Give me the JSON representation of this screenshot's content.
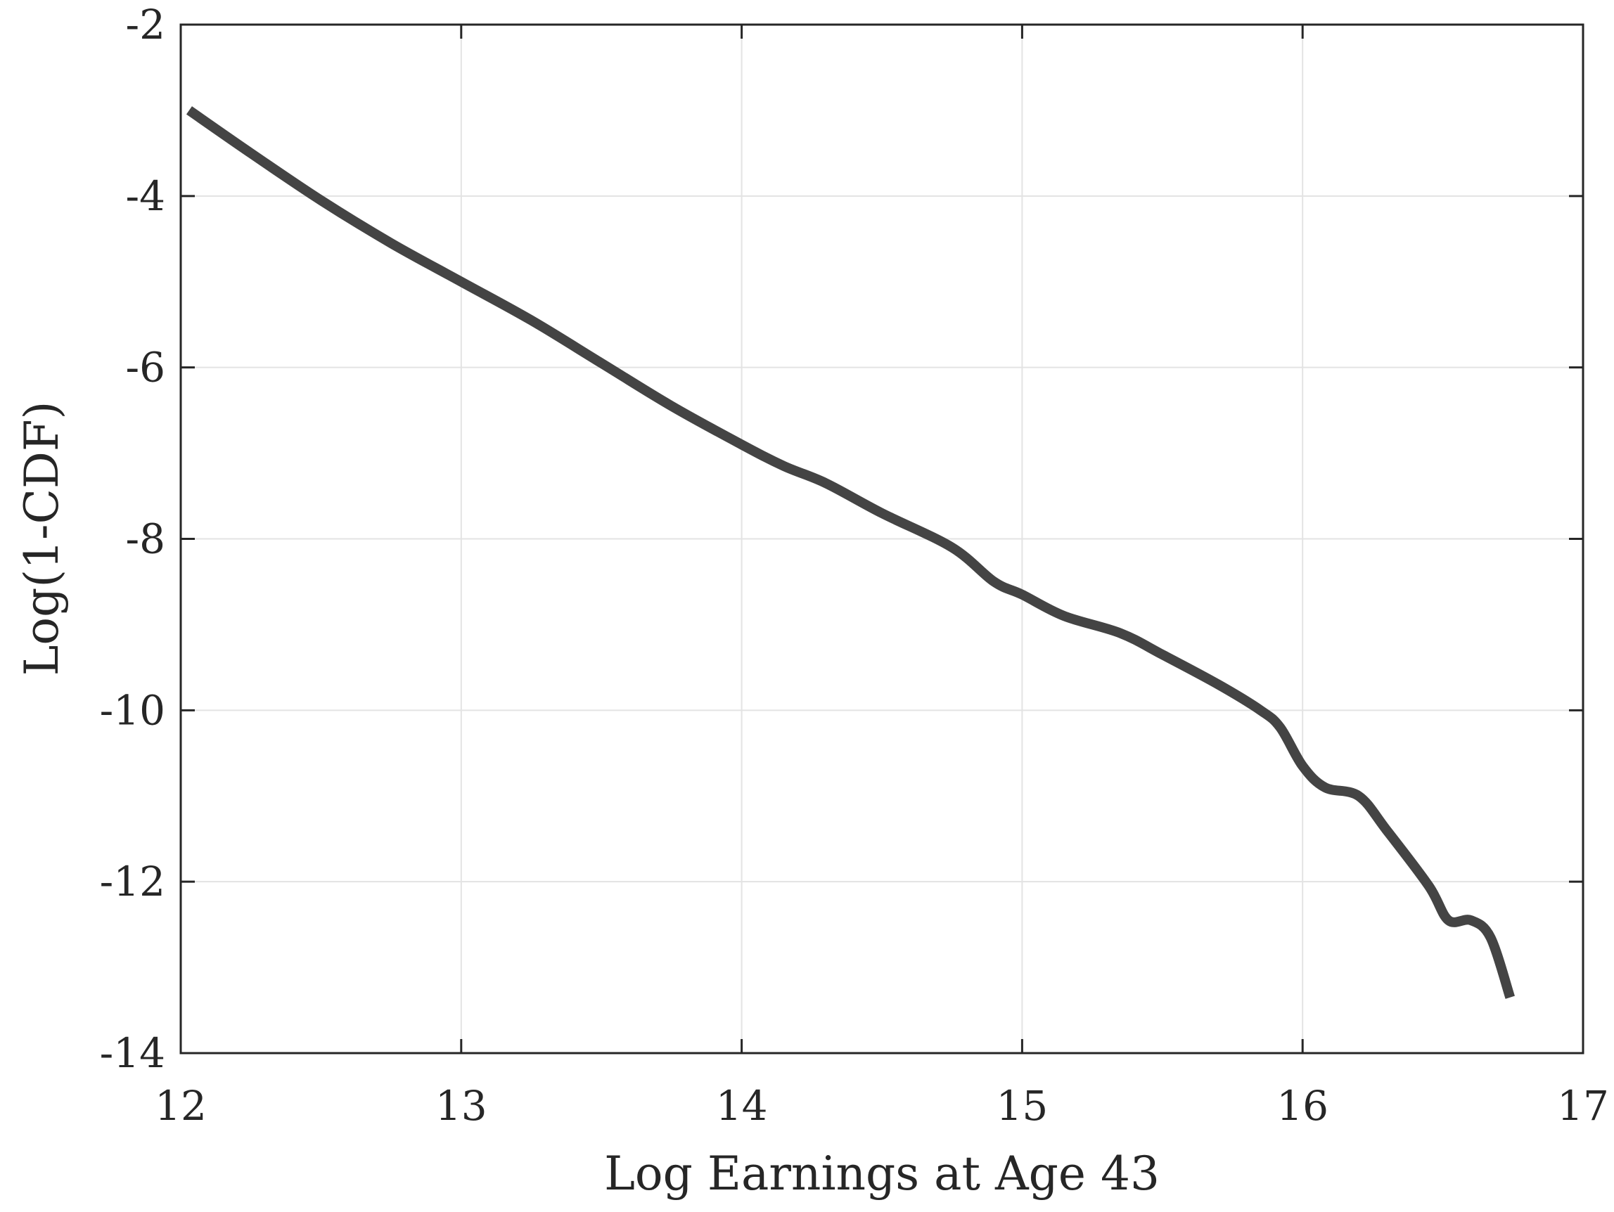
{
  "chart_data": {
    "type": "line",
    "title": "",
    "xlabel": "Log Earnings at Age 43",
    "ylabel": "Log(1-CDF)",
    "xlim": [
      12,
      17
    ],
    "ylim": [
      -14,
      -2
    ],
    "xticks": [
      "12",
      "13",
      "14",
      "15",
      "16",
      "17"
    ],
    "yticks": [
      "-2",
      "-4",
      "-6",
      "-8",
      "-10",
      "-12",
      "-14"
    ],
    "grid": true,
    "legend": null,
    "line_color": "#444444",
    "series": [
      {
        "name": "Log(1-CDF)",
        "x": [
          12.03,
          12.25,
          12.5,
          12.75,
          13.0,
          13.25,
          13.5,
          13.75,
          14.0,
          14.15,
          14.3,
          14.5,
          14.75,
          14.9,
          15.0,
          15.15,
          15.35,
          15.5,
          15.7,
          15.85,
          15.92,
          16.0,
          16.08,
          16.2,
          16.3,
          16.45,
          16.52,
          16.6,
          16.67,
          16.74
        ],
        "y": [
          -3.0,
          -3.5,
          -4.05,
          -4.55,
          -5.0,
          -5.45,
          -5.95,
          -6.45,
          -6.9,
          -7.15,
          -7.35,
          -7.7,
          -8.1,
          -8.5,
          -8.65,
          -8.9,
          -9.1,
          -9.35,
          -9.7,
          -10.0,
          -10.2,
          -10.65,
          -10.9,
          -11.0,
          -11.4,
          -12.05,
          -12.45,
          -12.45,
          -12.65,
          -13.35
        ]
      }
    ]
  }
}
